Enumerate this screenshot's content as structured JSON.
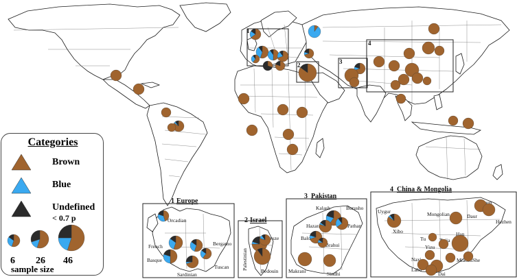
{
  "colors": {
    "brown": "#a0642e",
    "blue": "#3aa9f0",
    "undefined": "#2b2b2b"
  },
  "legend": {
    "title": "Categories",
    "items": [
      {
        "label": "Brown",
        "color": "#a0642e"
      },
      {
        "label": "Blue",
        "color": "#3aa9f0"
      },
      {
        "label": "Undefined",
        "color": "#2b2b2b"
      }
    ],
    "threshold": "< 0.7 p",
    "sizes": [
      "6",
      "26",
      "46"
    ],
    "size_label": "sample size"
  },
  "region_boxes": [
    {
      "number": "1"
    },
    {
      "number": "2"
    },
    {
      "number": "3"
    },
    {
      "number": "4"
    }
  ],
  "insets": [
    {
      "number": "1",
      "title": "Europe",
      "places": [
        "Orcadian",
        "French",
        "Basque",
        "Bergamo",
        "Tuscan",
        "Sardinian"
      ]
    },
    {
      "number": "2",
      "title": "Israel",
      "places": [
        "Druze",
        "Palestinian",
        "Bedouin"
      ]
    },
    {
      "number": "3",
      "title": "Pakistan",
      "places": [
        "Kalash",
        "Burusho",
        "Hazara",
        "Pathan",
        "Balochi",
        "Brahui",
        "Makrani",
        "Sindhi"
      ]
    },
    {
      "number": "4",
      "title": "China & Mongolia",
      "places": [
        "Uygur",
        "Xibo",
        "Mongolian",
        "Oroqen",
        "Daur",
        "Hezhen",
        "Tu",
        "Tujia",
        "Han",
        "Yizu",
        "Naxi",
        "Miaozu",
        "She",
        "Lahu",
        "Dai"
      ]
    }
  ]
}
